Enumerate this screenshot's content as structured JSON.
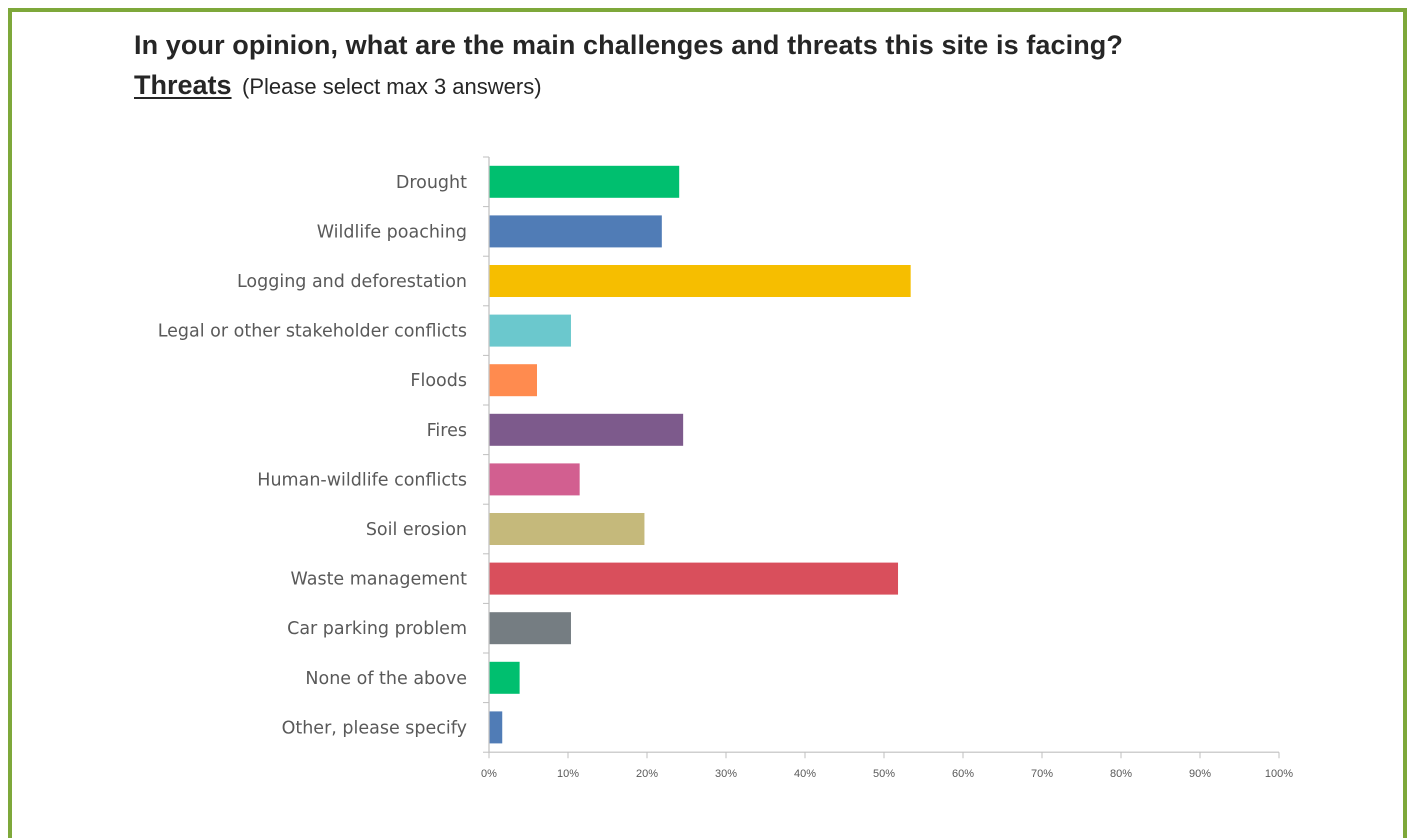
{
  "header": {
    "question": "In your opinion, what are the main challenges and threats this site is facing?",
    "section": "Threats",
    "instruction": "(Please select max 3 answers)"
  },
  "colors": {
    "frame_border": "#7ea83a",
    "axis": "#bfbfbf",
    "text": "#262626",
    "label_text": "#595959"
  },
  "chart_data": {
    "type": "bar",
    "orientation": "horizontal",
    "categories": [
      "Drought",
      "Wildlife poaching",
      "Logging and deforestation",
      "Legal or other stakeholder conflicts",
      "Floods",
      "Fires",
      "Human-wildlife conflicts",
      "Soil erosion",
      "Waste management",
      "Car parking problem",
      "None of the above",
      "Other, please specify"
    ],
    "values": [
      24,
      21.8,
      53.3,
      10.3,
      6,
      24.5,
      11.4,
      19.6,
      51.7,
      10.3,
      3.8,
      1.6
    ],
    "bar_colors": [
      "#00bf6f",
      "#507cb6",
      "#f6be00",
      "#6bc8cd",
      "#ff8b4f",
      "#7d5a8c",
      "#d25f90",
      "#c5b97b",
      "#d94f5c",
      "#757d82",
      "#00bf6f",
      "#507cb6"
    ],
    "x_ticks": [
      "0%",
      "10%",
      "20%",
      "30%",
      "40%",
      "50%",
      "60%",
      "70%",
      "80%",
      "90%",
      "100%"
    ],
    "xlim": [
      0,
      100
    ],
    "xlabel": "",
    "ylabel": "",
    "title": "",
    "grid": false,
    "legend": "none"
  }
}
